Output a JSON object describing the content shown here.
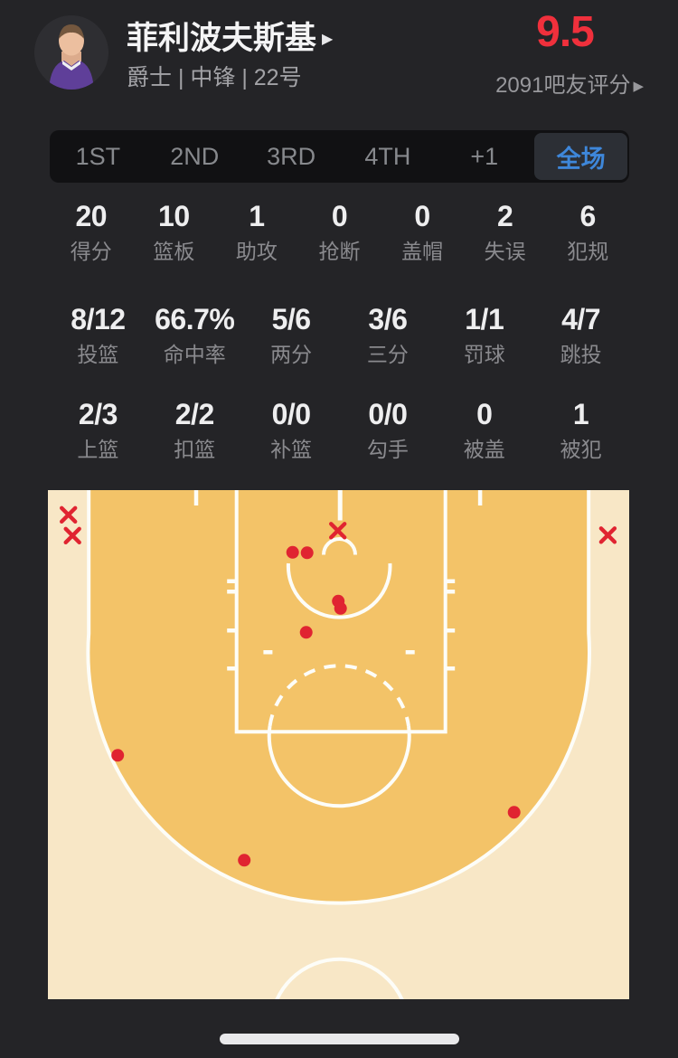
{
  "header": {
    "player_name": "菲利波夫斯基",
    "name_arrow": "▶",
    "team_info": "爵士 | 中锋 | 22号",
    "rating": "9.5",
    "rating_color": "#f0303c",
    "rating_caption": "2091吧友评分",
    "caption_arrow": "▶"
  },
  "tabs": {
    "selected_color": "#3e87da",
    "items": [
      {
        "label": "1ST",
        "selected": false
      },
      {
        "label": "2ND",
        "selected": false
      },
      {
        "label": "3RD",
        "selected": false
      },
      {
        "label": "4TH",
        "selected": false
      },
      {
        "label": "+1",
        "selected": false
      },
      {
        "label": "全场",
        "selected": true
      }
    ]
  },
  "stats": {
    "rows": [
      {
        "cells": [
          {
            "value": "20",
            "label": "得分"
          },
          {
            "value": "10",
            "label": "篮板"
          },
          {
            "value": "1",
            "label": "助攻"
          },
          {
            "value": "0",
            "label": "抢断"
          },
          {
            "value": "0",
            "label": "盖帽"
          },
          {
            "value": "2",
            "label": "失误"
          },
          {
            "value": "6",
            "label": "犯规"
          }
        ]
      },
      {
        "cells": [
          {
            "value": "8/12",
            "label": "投篮"
          },
          {
            "value": "66.7%",
            "label": "命中率"
          },
          {
            "value": "5/6",
            "label": "两分"
          },
          {
            "value": "3/6",
            "label": "三分"
          },
          {
            "value": "1/1",
            "label": "罚球"
          },
          {
            "value": "4/7",
            "label": "跳投"
          }
        ]
      },
      {
        "cells": [
          {
            "value": "2/3",
            "label": "上篮"
          },
          {
            "value": "2/2",
            "label": "扣篮"
          },
          {
            "value": "0/0",
            "label": "补篮"
          },
          {
            "value": "0/0",
            "label": "勾手"
          },
          {
            "value": "0",
            "label": "被盖"
          },
          {
            "value": "1",
            "label": "被犯"
          }
        ]
      }
    ]
  },
  "shot_chart": {
    "marker_color": "#e02431",
    "court_outer_color": "#f8e7c6",
    "court_inner_color": "#f3c368",
    "line_color": "#fdfdf8",
    "makes": [
      [
        270.7,
        68.8
      ],
      [
        286.7,
        69.3
      ],
      [
        321.2,
        122.8
      ],
      [
        323.7,
        130.8
      ],
      [
        285.7,
        157.3
      ],
      [
        77.2,
        293.3
      ],
      [
        515.7,
        356.3
      ],
      [
        217.2,
        409.3
      ]
    ],
    "misses": [
      [
        22.7,
        27.3
      ],
      [
        27.2,
        50.3
      ],
      [
        320.7,
        44.8
      ],
      [
        619.4,
        49.8
      ]
    ]
  }
}
